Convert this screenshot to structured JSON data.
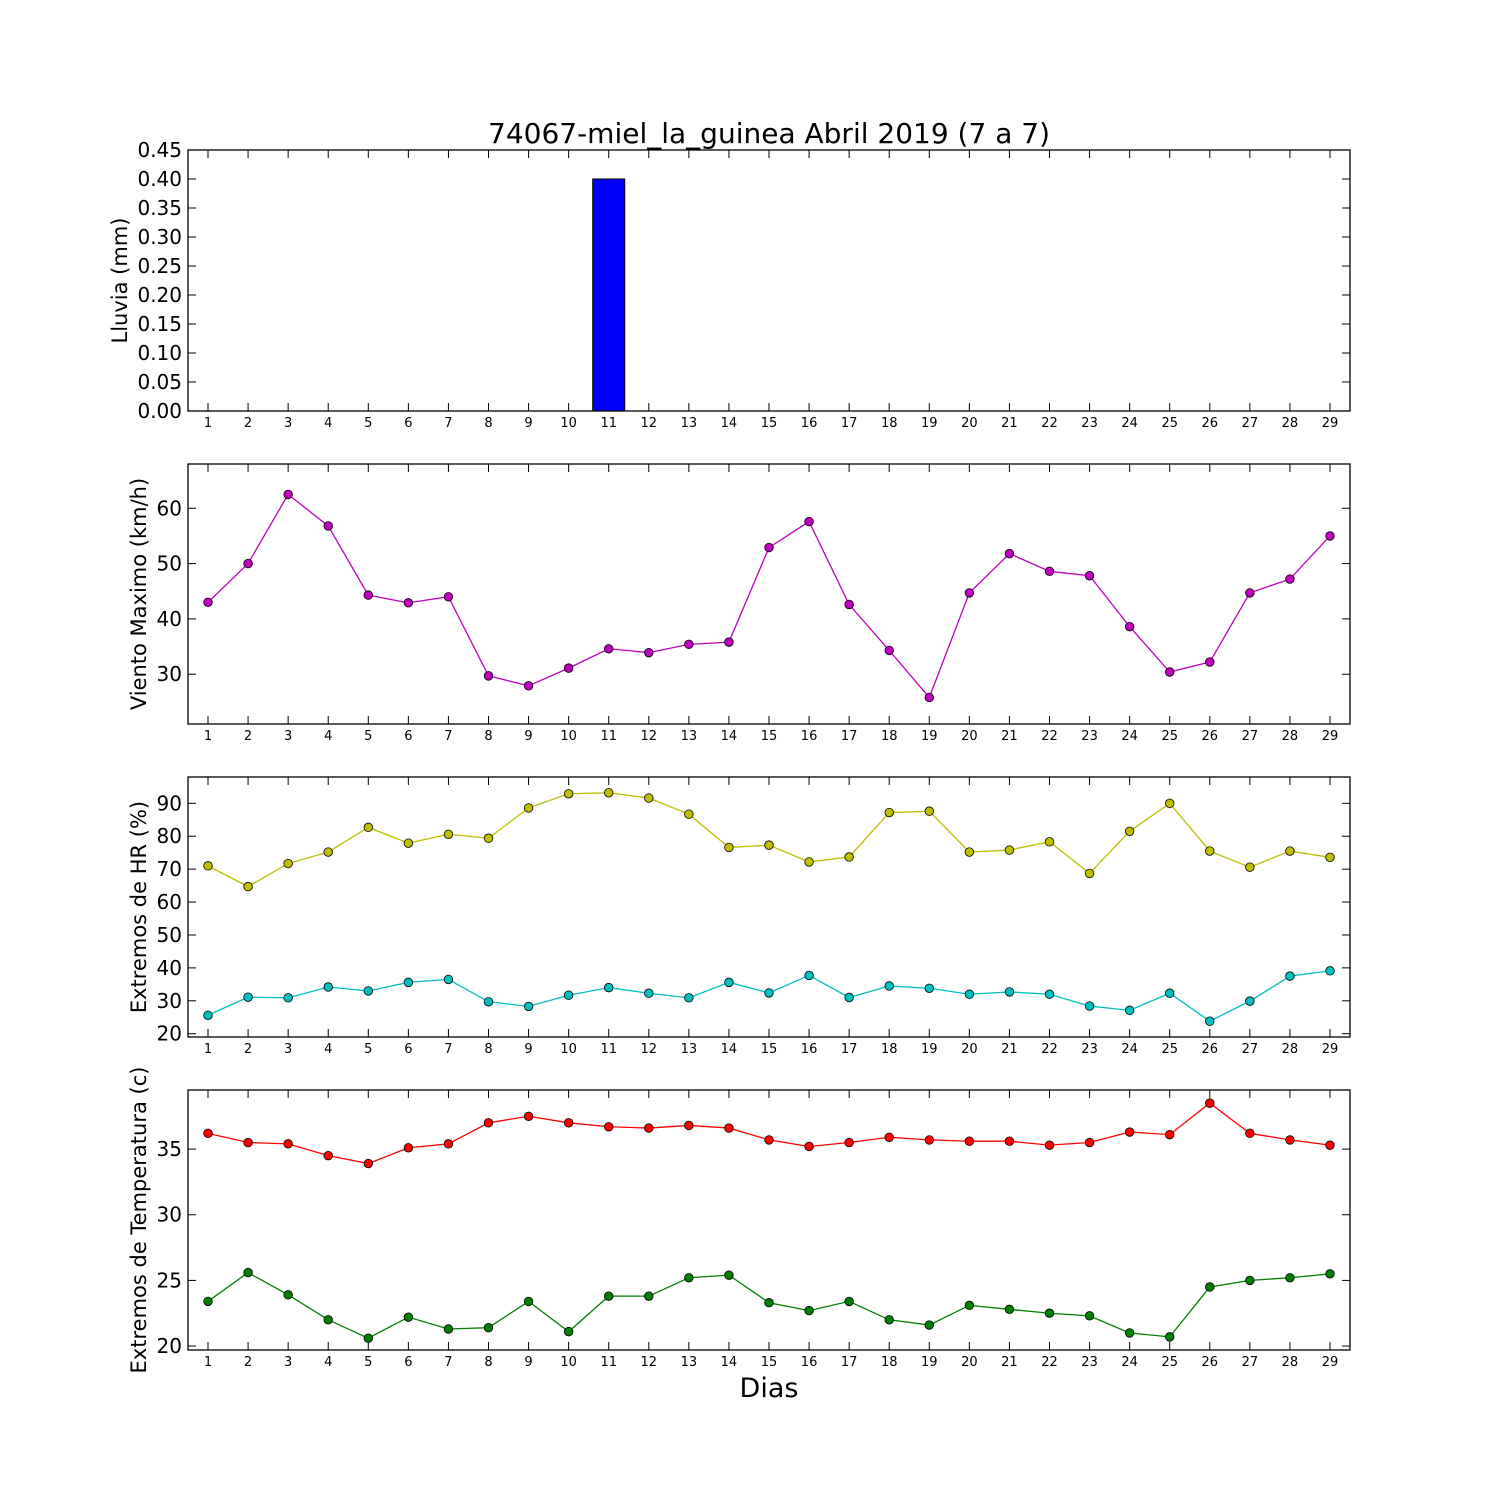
{
  "chart_data": {
    "title": "74067-miel_la_guinea Abril 2019  (7 a 7)",
    "xlabel": "Dias",
    "days": [
      1,
      2,
      3,
      4,
      5,
      6,
      7,
      8,
      9,
      10,
      11,
      12,
      13,
      14,
      15,
      16,
      17,
      18,
      19,
      20,
      21,
      22,
      23,
      24,
      25,
      26,
      27,
      28,
      29
    ],
    "panels": [
      {
        "type": "bar",
        "ylabel": "Lluvia (mm)",
        "ylim": [
          0,
          0.45
        ],
        "yticks": [
          "0.00",
          "0.05",
          "0.10",
          "0.15",
          "0.20",
          "0.25",
          "0.30",
          "0.35",
          "0.40",
          "0.45"
        ],
        "series": [
          {
            "color": "#0000ff",
            "values": [
              0,
              0,
              0,
              0,
              0,
              0,
              0,
              0,
              0,
              0,
              0.4,
              0,
              0,
              0,
              0,
              0,
              0,
              0,
              0,
              0,
              0,
              0,
              0,
              0,
              0,
              0,
              0,
              0,
              0
            ]
          }
        ]
      },
      {
        "type": "line",
        "ylabel": "Viento Maximo (km/h)",
        "ylim": [
          21,
          68
        ],
        "yticks": [
          "30",
          "40",
          "50",
          "60"
        ],
        "series": [
          {
            "color": "#bf00bf",
            "values": [
              43,
              50,
              62.5,
              56.8,
              44.3,
              42.9,
              44,
              29.7,
              27.9,
              31.1,
              34.6,
              33.9,
              35.4,
              35.8,
              52.9,
              57.6,
              42.6,
              34.3,
              25.8,
              44.7,
              51.8,
              48.6,
              47.8,
              38.6,
              30.4,
              32.2,
              44.7,
              47.2,
              55
            ]
          }
        ]
      },
      {
        "type": "line",
        "ylabel": "Extremos de HR (%)",
        "ylim": [
          19,
          98
        ],
        "yticks": [
          "20",
          "30",
          "40",
          "50",
          "60",
          "70",
          "80",
          "90"
        ],
        "series": [
          {
            "color": "#bfbf00",
            "values": [
              71,
              64.7,
              71.7,
              75.2,
              82.7,
              77.9,
              80.6,
              79.4,
              88.6,
              92.9,
              93.2,
              91.6,
              86.7,
              76.6,
              77.3,
              72.2,
              73.7,
              87.2,
              87.6,
              75.2,
              75.8,
              78.3,
              68.7,
              81.5,
              90,
              75.5,
              70.6,
              75.5,
              73.6
            ]
          },
          {
            "color": "#00bfbf",
            "values": [
              25.6,
              31.1,
              30.9,
              34.2,
              33,
              35.6,
              36.5,
              29.7,
              28.3,
              31.7,
              34,
              32.3,
              30.9,
              35.6,
              32.4,
              37.7,
              31,
              34.5,
              33.8,
              32,
              32.7,
              32,
              28.4,
              27.1,
              32.3,
              23.8,
              29.9,
              37.5,
              39.1
            ]
          }
        ]
      },
      {
        "type": "line",
        "ylabel": "Extremos de Temperatura (c)",
        "ylim": [
          19.7,
          39.5
        ],
        "yticks": [
          "20",
          "25",
          "30",
          "35"
        ],
        "series": [
          {
            "color": "#ff0000",
            "values": [
              36.2,
              35.5,
              35.4,
              34.5,
              33.9,
              35.1,
              35.4,
              37,
              37.5,
              37,
              36.7,
              36.6,
              36.8,
              36.6,
              35.7,
              35.2,
              35.5,
              35.9,
              35.7,
              35.6,
              35.6,
              35.3,
              35.5,
              36.3,
              36.1,
              38.5,
              36.2,
              35.7,
              35.3
            ]
          },
          {
            "color": "#007f00",
            "values": [
              23.4,
              25.6,
              23.9,
              22,
              20.6,
              22.2,
              21.3,
              21.4,
              23.4,
              21.1,
              23.8,
              23.8,
              25.2,
              25.4,
              23.3,
              22.7,
              23.4,
              22,
              21.6,
              23.1,
              22.8,
              22.5,
              22.3,
              21,
              20.7,
              24.5,
              25,
              25.2,
              25.5
            ]
          }
        ]
      }
    ]
  }
}
